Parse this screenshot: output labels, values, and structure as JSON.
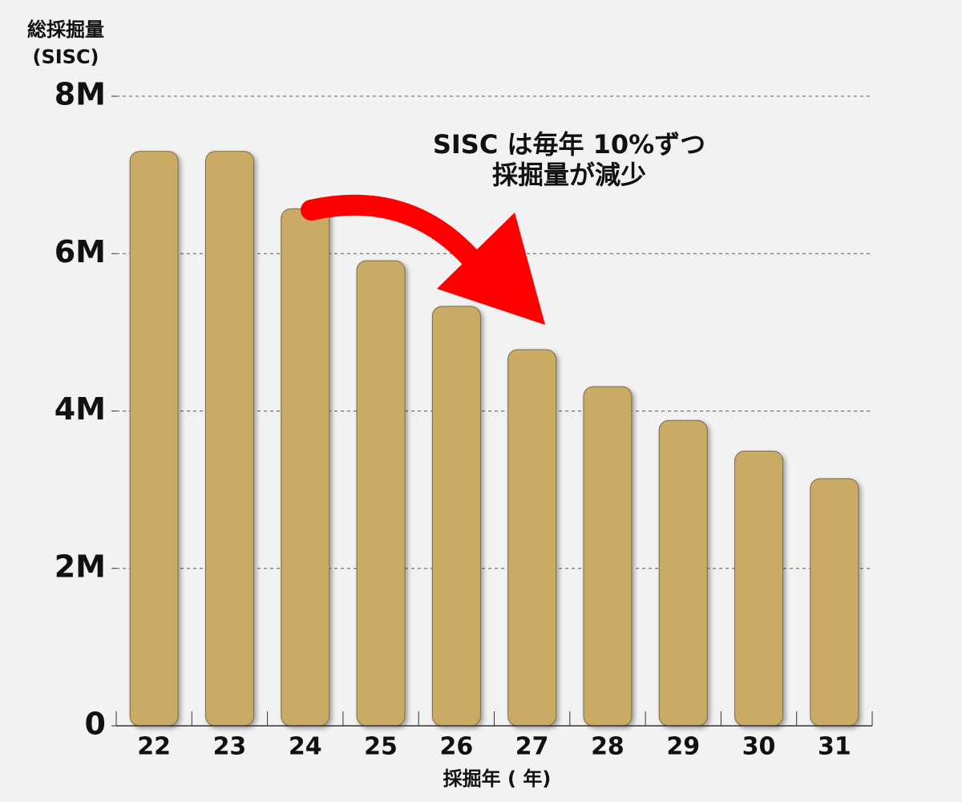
{
  "chart_data": {
    "type": "bar",
    "y_label": [
      "総採掘量",
      "(SISC)"
    ],
    "x_label": "採掘年 ( 年)",
    "annotation": [
      "SISC は毎年 10%ずつ",
      "採掘量が減少"
    ],
    "categories": [
      "22",
      "23",
      "24",
      "25",
      "26",
      "27",
      "28",
      "29",
      "30",
      "31"
    ],
    "values": [
      7300000,
      7300000,
      6570000,
      5910000,
      5330000,
      4780000,
      4310000,
      3880000,
      3490000,
      3140000
    ],
    "color": "#c9ab66",
    "ylim": [
      0,
      8000000
    ],
    "yticks": [
      0,
      {
        "value": 2000000,
        "label": "2M"
      },
      {
        "value": 4000000,
        "label": "4M"
      },
      {
        "value": 6000000,
        "label": "6M"
      },
      {
        "value": 8000000,
        "label": "8M"
      }
    ],
    "grid": true
  }
}
